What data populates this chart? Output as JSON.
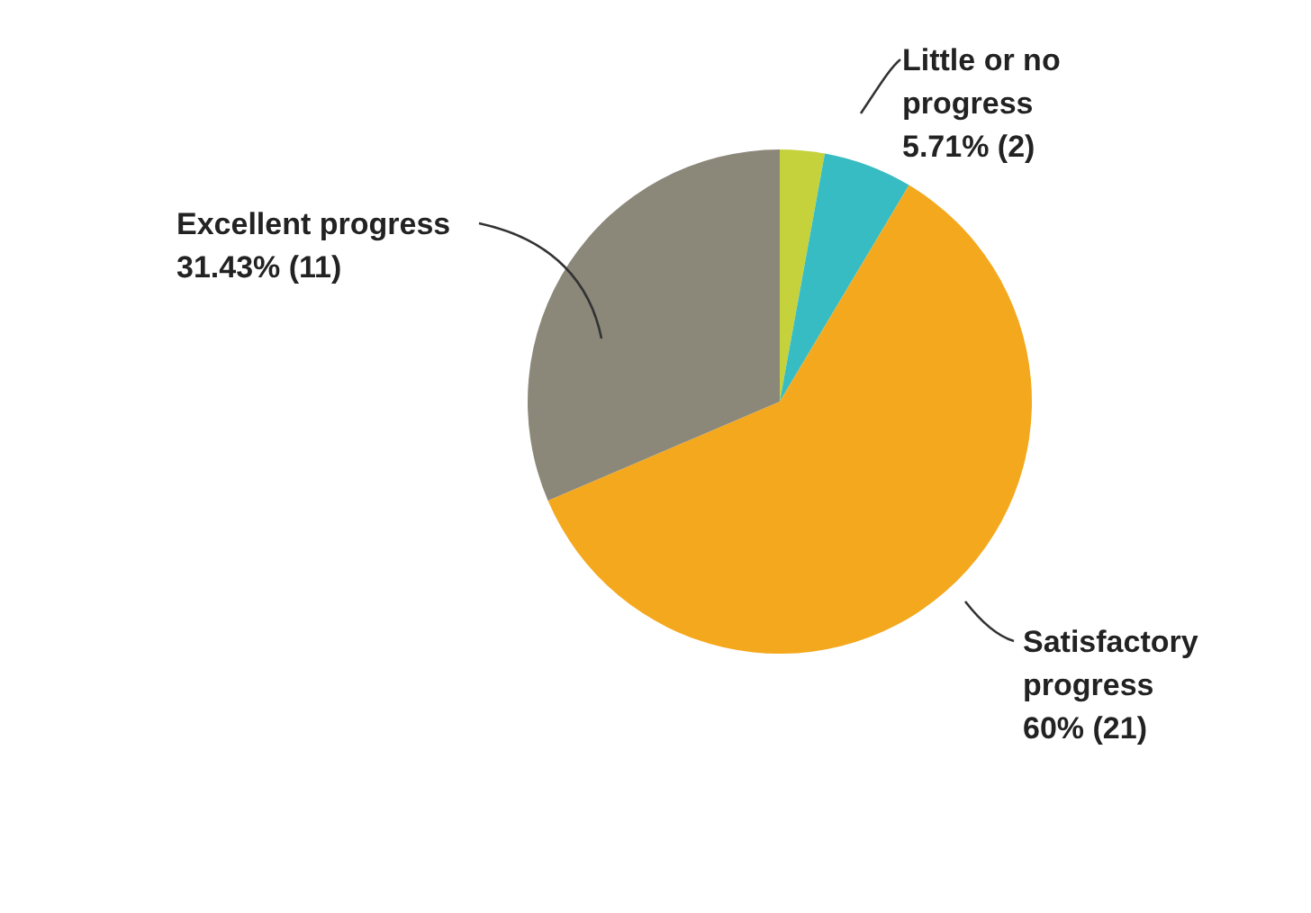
{
  "chart_data": {
    "type": "pie",
    "categories": [
      null,
      "Little or no progress",
      "Satisfactory progress",
      "Excellent progress"
    ],
    "values": [
      2.86,
      5.71,
      60,
      31.43
    ],
    "colors": [
      "#c5d23c",
      "#36bcc2",
      "#f4a81d",
      "#8b887a"
    ],
    "value_labels": [
      null,
      "5.71% (2)",
      "60% (21)",
      "31.43% (11)"
    ]
  }
}
